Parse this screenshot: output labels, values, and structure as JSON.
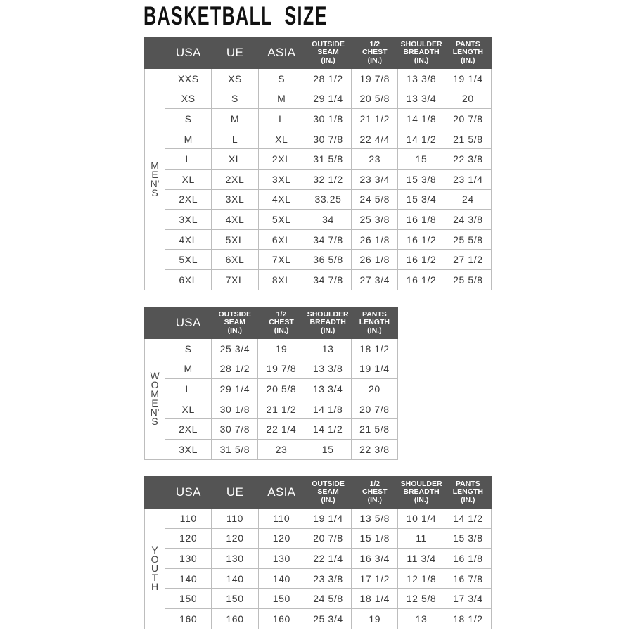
{
  "title": "BASKETBALL  SIZE",
  "colors": {
    "header_bg": "#545454",
    "header_text": "#ffffff",
    "grid": "#bdbdbd"
  },
  "tables": [
    {
      "group_label": "MEN'S",
      "headers": [
        [
          "USA"
        ],
        [
          "UE"
        ],
        [
          "ASIA"
        ],
        [
          "OUTSIDE",
          "SEAM",
          "(IN.)"
        ],
        [
          "1/2",
          "CHEST",
          "(IN.)"
        ],
        [
          "SHOULDER",
          "BREADTH",
          "(IN.)"
        ],
        [
          "PANTS",
          "LENGTH",
          "(IN.)"
        ]
      ],
      "rows": [
        [
          "XXS",
          "XS",
          "S",
          "28 1/2",
          "19 7/8",
          "13 3/8",
          "19 1/4"
        ],
        [
          "XS",
          "S",
          "M",
          "29 1/4",
          "20 5/8",
          "13 3/4",
          "20"
        ],
        [
          "S",
          "M",
          "L",
          "30 1/8",
          "21 1/2",
          "14 1/8",
          "20 7/8"
        ],
        [
          "M",
          "L",
          "XL",
          "30 7/8",
          "22 4/4",
          "14 1/2",
          "21 5/8"
        ],
        [
          "L",
          "XL",
          "2XL",
          "31 5/8",
          "23",
          "15",
          "22 3/8"
        ],
        [
          "XL",
          "2XL",
          "3XL",
          "32 1/2",
          "23 3/4",
          "15 3/8",
          "23 1/4"
        ],
        [
          "2XL",
          "3XL",
          "4XL",
          "33.25",
          "24 5/8",
          "15 3/4",
          "24"
        ],
        [
          "3XL",
          "4XL",
          "5XL",
          "34",
          "25 3/8",
          "16 1/8",
          "24 3/8"
        ],
        [
          "4XL",
          "5XL",
          "6XL",
          "34 7/8",
          "26 1/8",
          "16 1/2",
          "25 5/8"
        ],
        [
          "5XL",
          "6XL",
          "7XL",
          "36 5/8",
          "26 1/8",
          "16 1/2",
          "27 1/2"
        ],
        [
          "6XL",
          "7XL",
          "8XL",
          "34 7/8",
          "27 3/4",
          "16 1/2",
          "25 5/8"
        ]
      ]
    },
    {
      "group_label": "WOMEN'S",
      "headers": [
        [
          "USA"
        ],
        [
          "OUTSIDE",
          "SEAM",
          "(IN.)"
        ],
        [
          "1/2",
          "CHEST",
          "(IN.)"
        ],
        [
          "SHOULDER",
          "BREADTH",
          "(IN.)"
        ],
        [
          "PANTS",
          "LENGTH",
          "(IN.)"
        ]
      ],
      "rows": [
        [
          "S",
          "25 3/4",
          "19",
          "13",
          "18 1/2"
        ],
        [
          "M",
          "28 1/2",
          "19 7/8",
          "13 3/8",
          "19 1/4"
        ],
        [
          "L",
          "29 1/4",
          "20 5/8",
          "13 3/4",
          "20"
        ],
        [
          "XL",
          "30 1/8",
          "21 1/2",
          "14 1/8",
          "20 7/8"
        ],
        [
          "2XL",
          "30 7/8",
          "22 1/4",
          "14 1/2",
          "21 5/8"
        ],
        [
          "3XL",
          "31 5/8",
          "23",
          "15",
          "22 3/8"
        ]
      ]
    },
    {
      "group_label": "YOUTH",
      "headers": [
        [
          "USA"
        ],
        [
          "UE"
        ],
        [
          "ASIA"
        ],
        [
          "OUTSIDE",
          "SEAM",
          "(IN.)"
        ],
        [
          "1/2",
          "CHEST",
          "(IN.)"
        ],
        [
          "SHOULDER",
          "BREADTH",
          "(IN.)"
        ],
        [
          "PANTS",
          "LENGTH",
          "(IN.)"
        ]
      ],
      "rows": [
        [
          "110",
          "110",
          "110",
          "19 1/4",
          "13 5/8",
          "10 1/4",
          "14 1/2"
        ],
        [
          "120",
          "120",
          "120",
          "20 7/8",
          "15 1/8",
          "11",
          "15 3/8"
        ],
        [
          "130",
          "130",
          "130",
          "22 1/4",
          "16 3/4",
          "11 3/4",
          "16 1/8"
        ],
        [
          "140",
          "140",
          "140",
          "23 3/8",
          "17 1/2",
          "12 1/8",
          "16 7/8"
        ],
        [
          "150",
          "150",
          "150",
          "24 5/8",
          "18 1/4",
          "12 5/8",
          "17 3/4"
        ],
        [
          "160",
          "160",
          "160",
          "25 3/4",
          "19",
          "13",
          "18 1/2"
        ]
      ]
    }
  ]
}
